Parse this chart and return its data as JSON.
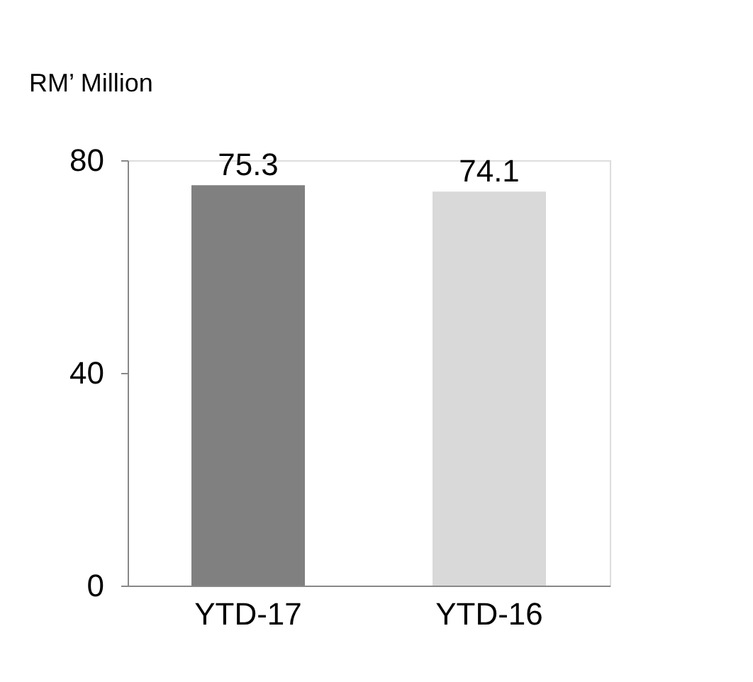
{
  "chart_data": {
    "type": "bar",
    "ylabel": "RM’ Million",
    "categories": [
      "YTD-17",
      "YTD-16"
    ],
    "values": [
      75.3,
      74.1
    ],
    "colors": [
      "#808080",
      "#d9d9d9"
    ],
    "ylim": [
      0,
      80
    ],
    "yticks": [
      0,
      40,
      80
    ],
    "data_labels": true,
    "grid": false
  }
}
